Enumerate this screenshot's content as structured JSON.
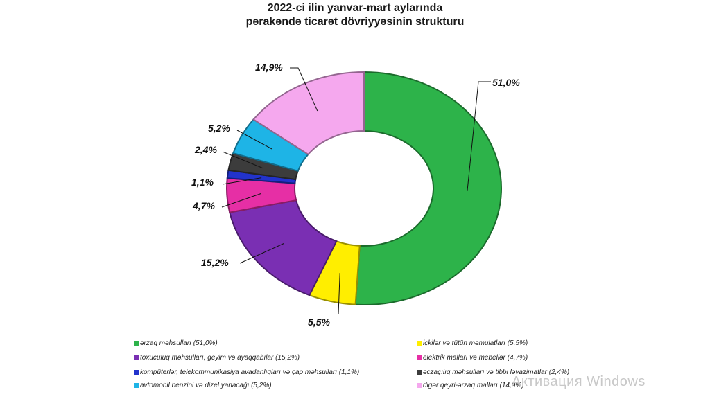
{
  "chart_data": {
    "type": "pie",
    "title": "2022-ci ilin yanvar-mart aylarında",
    "subtitle": "pərakəndə ticarət dövriyyəsinin strukturu",
    "categories": [
      "ərzaq məhsulları (51,0%)",
      "içkilər və tütün məmulatları (5,5%)",
      "toxuculuq məhsulları, geyim və ayaqqabılar (15,2%)",
      "elektrik malları və mebellər (4,7%)",
      "kompüterlər, telekommunikasiya avadanlıqları və çap məhsulları (1,1%)",
      "əczaçılıq məhsulları və tibbi ləvazimatlar (2,4%)",
      "avtomobil benzini və dizel yanacağı (5,2%)",
      "digər qeyri-ərzaq malları (14,9%)"
    ],
    "values": [
      51.0,
      5.5,
      15.2,
      4.7,
      1.1,
      2.4,
      5.2,
      14.9
    ],
    "value_labels": [
      "51,0%",
      "5,5%",
      "15,2%",
      "4,7%",
      "1,1%",
      "2,4%",
      "5,2%",
      "14,9%"
    ],
    "colors": [
      "#2db34a",
      "#ffee00",
      "#7a2fb3",
      "#e62fa5",
      "#2233cc",
      "#3c3c3c",
      "#1eb4e6",
      "#f5a8ee"
    ],
    "hole": "donut",
    "legend_position": "bottom"
  },
  "watermark": "Активация Windows"
}
